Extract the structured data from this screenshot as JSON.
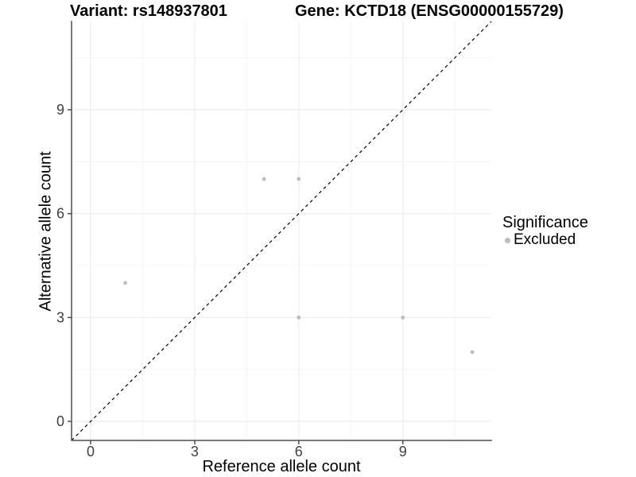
{
  "figure": {
    "title_variant": "Variant: rs148937801",
    "title_gene": "Gene: KCTD18 (ENSG00000155729)"
  },
  "chart_data": {
    "type": "scatter",
    "title": "Variant: rs148937801   Gene: KCTD18 (ENSG00000155729)",
    "xlabel": "Reference allele count",
    "ylabel": "Alternative allele count",
    "xlim": [
      -0.55,
      11.55
    ],
    "ylim": [
      -0.55,
      11.55
    ],
    "xticks": [
      0,
      3,
      6,
      9
    ],
    "yticks": [
      0,
      3,
      6,
      9
    ],
    "x_minor_ticks": [
      1.5,
      4.5,
      7.5,
      10.5
    ],
    "y_minor_ticks": [
      1.5,
      4.5,
      7.5,
      10.5
    ],
    "grid": true,
    "identity_line": {
      "slope": 1,
      "intercept": 0,
      "style": "dashed",
      "color": "#000000"
    },
    "series": [
      {
        "name": "Excluded",
        "color": "#bdbdbd",
        "points": [
          [
            1,
            4
          ],
          [
            5,
            7
          ],
          [
            6,
            7
          ],
          [
            6,
            3
          ],
          [
            9,
            3
          ],
          [
            11,
            2
          ]
        ]
      }
    ],
    "legend": {
      "title": "Significance",
      "position": "right",
      "entries": [
        {
          "label": "Excluded",
          "color": "#bdbdbd"
        }
      ]
    },
    "colors": {
      "grid_major": "#ebebeb",
      "grid_minor": "#f4f4f4",
      "axis_line": "#4d4d4d",
      "tick_label": "#404040",
      "background": "#ffffff"
    }
  }
}
